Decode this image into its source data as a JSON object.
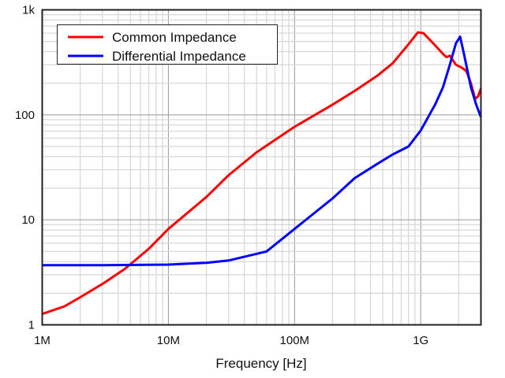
{
  "chart_data": {
    "type": "line",
    "title": "",
    "xlabel": "Frequency [Hz]",
    "ylabel": "",
    "xscale": "log",
    "yscale": "log",
    "xlim": [
      1000000,
      3000000000
    ],
    "ylim": [
      1,
      1000
    ],
    "grid": true,
    "legend_position": "top-left",
    "x_ticks": [
      {
        "value": 1000000,
        "label": "1M"
      },
      {
        "value": 10000000,
        "label": "10M"
      },
      {
        "value": 100000000,
        "label": "100M"
      },
      {
        "value": 1000000000,
        "label": "1G"
      }
    ],
    "y_ticks": [
      {
        "value": 1,
        "label": "1"
      },
      {
        "value": 10,
        "label": "10"
      },
      {
        "value": 100,
        "label": "100"
      },
      {
        "value": 1000,
        "label": "1k"
      }
    ],
    "series": [
      {
        "name": "Common Impedance",
        "color": "#ff0000",
        "points": [
          [
            1000000.0,
            1.27
          ],
          [
            1500000.0,
            1.5
          ],
          [
            2000000.0,
            1.83
          ],
          [
            3000000.0,
            2.45
          ],
          [
            4500000.0,
            3.4
          ],
          [
            7000000.0,
            5.3
          ],
          [
            10000000.0,
            8.2
          ],
          [
            20000000.0,
            16.5
          ],
          [
            30000000.0,
            26.6
          ],
          [
            50000000.0,
            44
          ],
          [
            100000000.0,
            77
          ],
          [
            200000000.0,
            125
          ],
          [
            300000000.0,
            169
          ],
          [
            450000000.0,
            235
          ],
          [
            600000000.0,
            310
          ],
          [
            800000000.0,
            470
          ],
          [
            950000000.0,
            610
          ],
          [
            1050000000.0,
            600
          ],
          [
            1300000000.0,
            460
          ],
          [
            1500000000.0,
            380
          ],
          [
            1600000000.0,
            355
          ],
          [
            1700000000.0,
            366
          ],
          [
            1900000000.0,
            300
          ],
          [
            2100000000.0,
            283
          ],
          [
            2300000000.0,
            262
          ],
          [
            2500000000.0,
            200
          ],
          [
            2700000000.0,
            142
          ],
          [
            2850000000.0,
            150
          ],
          [
            3000000000.0,
            178
          ]
        ]
      },
      {
        "name": "Differential Impedance",
        "color": "#0000ff",
        "points": [
          [
            1000000.0,
            3.7
          ],
          [
            3000000.0,
            3.7
          ],
          [
            10000000.0,
            3.75
          ],
          [
            20000000.0,
            3.9
          ],
          [
            30000000.0,
            4.1
          ],
          [
            60000000.0,
            5.0
          ],
          [
            100000000.0,
            8.2
          ],
          [
            200000000.0,
            16
          ],
          [
            300000000.0,
            25
          ],
          [
            450000000.0,
            34
          ],
          [
            600000000.0,
            42
          ],
          [
            800000000.0,
            50
          ],
          [
            1000000000.0,
            71
          ],
          [
            1300000000.0,
            125
          ],
          [
            1500000000.0,
            183
          ],
          [
            1700000000.0,
            300
          ],
          [
            1900000000.0,
            480
          ],
          [
            2050000000.0,
            555
          ],
          [
            2200000000.0,
            380
          ],
          [
            2500000000.0,
            183
          ],
          [
            2750000000.0,
            125
          ],
          [
            3000000000.0,
            95
          ]
        ]
      }
    ]
  }
}
